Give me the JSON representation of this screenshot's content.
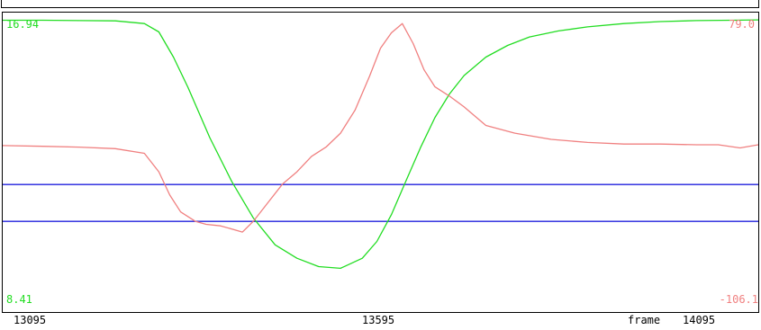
{
  "chart_data": {
    "type": "line",
    "xlabel": "frame",
    "x_ticks": [
      "13095",
      "13595",
      "14095"
    ],
    "xlim": [
      13095,
      14135
    ],
    "series": [
      {
        "axis": "left",
        "color": "#22dd22",
        "ylim": [
          8.41,
          16.94
        ],
        "ylim_labels": [
          "16.94",
          "8.41"
        ],
        "x": [
          13095,
          13150,
          13200,
          13250,
          13290,
          13310,
          13330,
          13350,
          13380,
          13410,
          13440,
          13470,
          13500,
          13530,
          13560,
          13590,
          13610,
          13630,
          13650,
          13670,
          13690,
          13710,
          13730,
          13760,
          13790,
          13820,
          13860,
          13900,
          13950,
          14000,
          14050,
          14100,
          14135
        ],
        "y": [
          16.9,
          16.9,
          16.89,
          16.88,
          16.8,
          16.55,
          15.8,
          14.9,
          13.4,
          12.1,
          11.0,
          10.2,
          9.8,
          9.55,
          9.5,
          9.8,
          10.3,
          11.1,
          12.1,
          13.1,
          14.0,
          14.7,
          15.25,
          15.8,
          16.15,
          16.4,
          16.58,
          16.7,
          16.8,
          16.86,
          16.89,
          16.9,
          16.91
        ]
      },
      {
        "axis": "right",
        "color": "#f08080",
        "ylim": [
          -106.1,
          79.0
        ],
        "ylim_labels": [
          "79.0",
          "-106.1"
        ],
        "x": [
          13095,
          13150,
          13200,
          13250,
          13290,
          13310,
          13325,
          13340,
          13360,
          13375,
          13395,
          13410,
          13425,
          13440,
          13460,
          13480,
          13500,
          13520,
          13540,
          13560,
          13580,
          13600,
          13615,
          13630,
          13645,
          13660,
          13675,
          13690,
          13710,
          13730,
          13760,
          13800,
          13850,
          13900,
          13950,
          14000,
          14050,
          14080,
          14110,
          14135
        ],
        "y": [
          -3.0,
          -3.5,
          -4.0,
          -5.0,
          -8.0,
          -20.0,
          -35.0,
          -46.0,
          -52.0,
          -54.0,
          -55.0,
          -57.0,
          -59.0,
          -52.0,
          -40.0,
          -28.0,
          -20.0,
          -10.0,
          -4.0,
          5.0,
          20.0,
          42.0,
          60.0,
          70.0,
          76.0,
          63.0,
          46.0,
          35.0,
          29.0,
          22.0,
          10.0,
          5.0,
          1.0,
          -1.0,
          -2.0,
          -2.0,
          -2.5,
          -2.5,
          -4.5,
          -2.5
        ]
      }
    ],
    "reference_lines_left_axis": [
      12.0,
      10.9
    ],
    "reference_line_color": "#2020dd"
  }
}
